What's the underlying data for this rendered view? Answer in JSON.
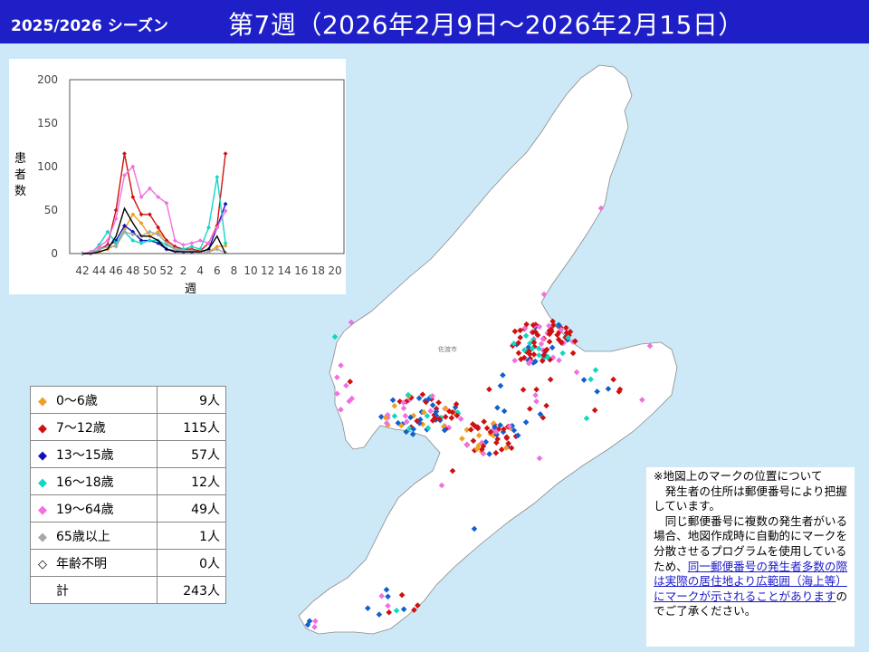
{
  "header": {
    "season": "2025/2026 シーズン",
    "title": "第7週（2026年2月9日～2026年2月15日）"
  },
  "chart_data": {
    "type": "line",
    "title": "",
    "xlabel": "週",
    "ylabel": "患者数",
    "x": [
      42,
      43,
      44,
      45,
      46,
      47,
      48,
      49,
      50,
      51,
      52,
      1,
      2,
      3,
      4,
      5,
      6,
      7
    ],
    "x_ticks": [
      "42",
      "44",
      "46",
      "48",
      "50",
      "52",
      "2",
      "4",
      "6",
      "8",
      "10",
      "12",
      "14",
      "16",
      "18",
      "20"
    ],
    "ylim": [
      0,
      200
    ],
    "y_ticks": [
      0,
      50,
      100,
      150,
      200
    ],
    "series": [
      {
        "name": "0～6歳",
        "color": "#f0a020",
        "marker": "diamond",
        "values": [
          0,
          0,
          2,
          5,
          10,
          28,
          45,
          35,
          20,
          25,
          15,
          8,
          3,
          3,
          2,
          2,
          8,
          9
        ]
      },
      {
        "name": "7～12歳",
        "color": "#d01010",
        "marker": "diamond",
        "values": [
          0,
          0,
          5,
          10,
          50,
          115,
          65,
          45,
          45,
          30,
          15,
          8,
          5,
          5,
          3,
          12,
          32,
          115
        ]
      },
      {
        "name": "13～15歳",
        "color": "#1010c0",
        "marker": "diamond",
        "values": [
          0,
          0,
          5,
          8,
          15,
          32,
          25,
          15,
          15,
          12,
          5,
          3,
          2,
          2,
          2,
          5,
          30,
          57
        ]
      },
      {
        "name": "16～18歳",
        "color": "#10d8c0",
        "marker": "diamond",
        "values": [
          0,
          0,
          10,
          25,
          12,
          25,
          15,
          12,
          15,
          15,
          10,
          5,
          5,
          8,
          5,
          30,
          88,
          12
        ]
      },
      {
        "name": "19～64歳",
        "color": "#f070e0",
        "marker": "diamond",
        "values": [
          0,
          2,
          8,
          15,
          40,
          90,
          100,
          65,
          75,
          65,
          58,
          15,
          10,
          12,
          15,
          12,
          30,
          49
        ]
      },
      {
        "name": "65歳以上",
        "color": "#a8a8a8",
        "marker": "diamond",
        "values": [
          0,
          0,
          5,
          8,
          8,
          25,
          22,
          20,
          25,
          22,
          12,
          5,
          3,
          3,
          2,
          2,
          5,
          1
        ]
      },
      {
        "name": "",
        "color": "#000000",
        "marker": "none",
        "values": [
          0,
          0,
          2,
          5,
          20,
          52,
          35,
          20,
          20,
          15,
          5,
          2,
          2,
          2,
          2,
          5,
          20,
          0
        ]
      }
    ]
  },
  "legend": {
    "rows": [
      {
        "label": "0～6歳",
        "value": "9人",
        "color": "#f0a020",
        "marker": "◆"
      },
      {
        "label": "7～12歳",
        "value": "115人",
        "color": "#d01010",
        "marker": "◆"
      },
      {
        "label": "13～15歳",
        "value": "57人",
        "color": "#1010c0",
        "marker": "◆"
      },
      {
        "label": "16～18歳",
        "value": "12人",
        "color": "#10d8c0",
        "marker": "◆"
      },
      {
        "label": "19～64歳",
        "value": "49人",
        "color": "#f070e0",
        "marker": "◆"
      },
      {
        "label": "65歳以上",
        "value": "1人",
        "color": "#a8a8a8",
        "marker": "◆"
      },
      {
        "label": "年齢不明",
        "value": "0人",
        "color": "#000000",
        "marker": "◇"
      }
    ],
    "total_label": "計",
    "total_value": "243人"
  },
  "map": {
    "city_label": "佐渡市",
    "land_color": "#ffffff",
    "sea_color": "#cde9f7"
  },
  "note": {
    "heading": "※地図上のマークの位置について",
    "para1": "発生者の住所は郵便番号により把握しています。",
    "para2_a": "同じ郵便番号に複数の発生者がいる場合、地図作成時に自動的にマークを分散させるプログラムを使用しているため、",
    "para2_link": "同一郵便番号の発生者多数の際は実際の居住地より広範囲（海上等）にマークが示されることがあります",
    "para2_b": "のでご了承ください。"
  }
}
